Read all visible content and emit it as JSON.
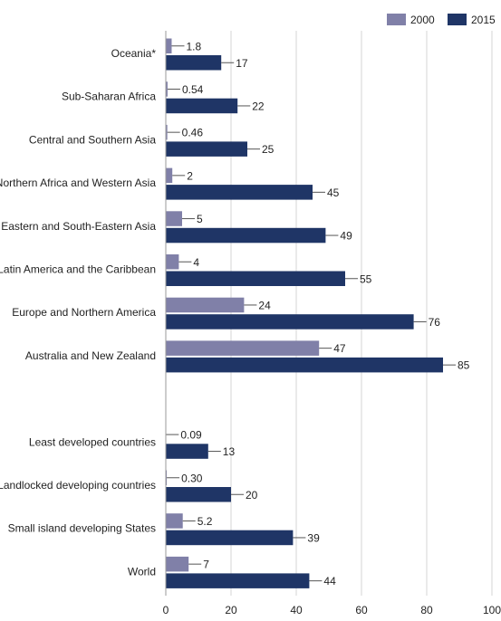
{
  "chart_data": {
    "type": "bar",
    "orientation": "horizontal",
    "categories": [
      "Oceania*",
      "Sub-Saharan Africa",
      "Central and Southern Asia",
      "Northern Africa and Western Asia",
      "Eastern and South-Eastern Asia",
      "Latin America and the Caribbean",
      "Europe and Northern America",
      "Australia and New Zealand",
      "",
      "Least developed countries",
      "Landlocked developing countries",
      "Small island developing States",
      "World"
    ],
    "series": [
      {
        "name": "2000",
        "color": "#8080a8",
        "values": [
          1.8,
          0.54,
          0.46,
          2,
          5,
          4,
          24,
          47,
          null,
          0.09,
          0.3,
          5.2,
          7
        ],
        "labels": [
          "1.8",
          "0.54",
          "0.46",
          "2",
          "5",
          "4",
          "24",
          "47",
          "",
          "0.09",
          "0.30",
          "5.2",
          "7"
        ]
      },
      {
        "name": "2015",
        "color": "#1f3566",
        "values": [
          17,
          22,
          25,
          45,
          49,
          55,
          76,
          85,
          null,
          13,
          20,
          39,
          44
        ],
        "labels": [
          "17",
          "22",
          "25",
          "45",
          "49",
          "55",
          "76",
          "85",
          "",
          "13",
          "20",
          "39",
          "44"
        ]
      }
    ],
    "xlim": [
      0,
      100
    ],
    "xticks": [
      0,
      20,
      40,
      60,
      80,
      100
    ],
    "grid": true,
    "legend": "top-right",
    "title": "",
    "xlabel": "",
    "ylabel": ""
  }
}
